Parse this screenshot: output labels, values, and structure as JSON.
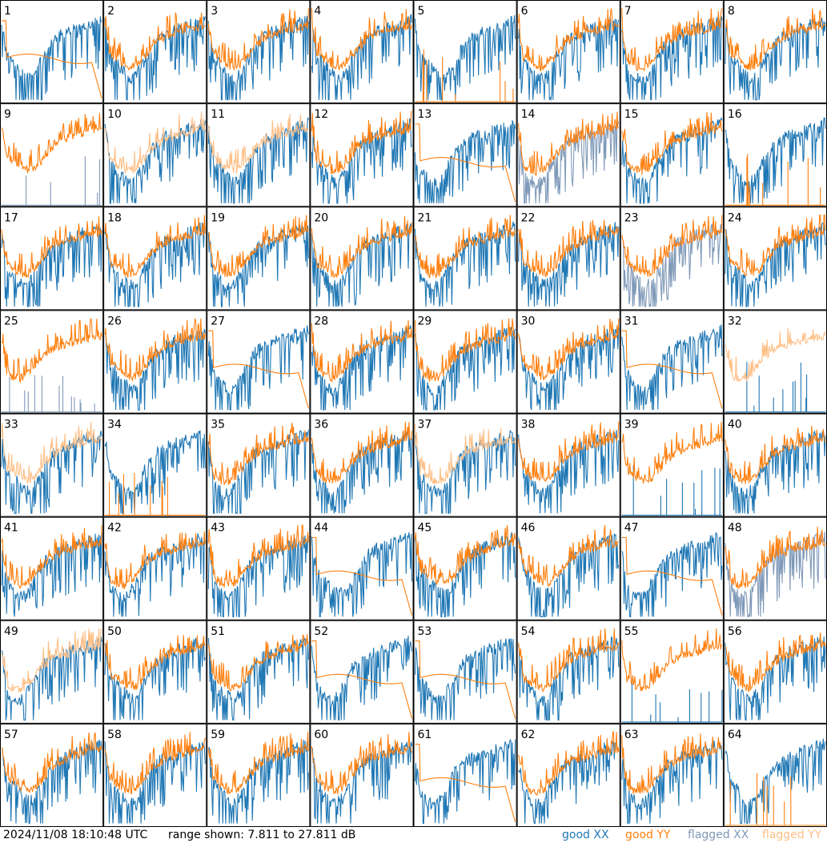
{
  "footer": {
    "timestamp": "2024/11/08 18:10:48 UTC",
    "range": "range shown: 7.811 to 27.811 dB"
  },
  "legend": [
    {
      "id": "good_xx",
      "label": "good XX",
      "color": "#1f77b4"
    },
    {
      "id": "good_yy",
      "label": "good YY",
      "color": "#ff7f0e"
    },
    {
      "id": "flagged_xx",
      "label": "flagged XX",
      "color": "#7f99b8"
    },
    {
      "id": "flagged_yy",
      "label": "flagged YY",
      "color": "#ffbf86"
    }
  ],
  "chart_data": {
    "type": "line",
    "title": "",
    "xlabel": "",
    "ylabel": "",
    "ylim": [
      7.811,
      27.811
    ],
    "grid_layout": [
      8,
      8
    ],
    "panel_labels": [
      "1",
      "2",
      "3",
      "4",
      "5",
      "6",
      "7",
      "8",
      "9",
      "10",
      "11",
      "12",
      "13",
      "14",
      "15",
      "16",
      "17",
      "18",
      "19",
      "20",
      "21",
      "22",
      "23",
      "24",
      "25",
      "26",
      "27",
      "28",
      "29",
      "30",
      "31",
      "32",
      "33",
      "34",
      "35",
      "36",
      "37",
      "38",
      "39",
      "40",
      "41",
      "42",
      "43",
      "44",
      "45",
      "46",
      "47",
      "48",
      "49",
      "50",
      "51",
      "52",
      "53",
      "54",
      "55",
      "56",
      "57",
      "58",
      "59",
      "60",
      "61",
      "62",
      "63",
      "64"
    ],
    "series": [
      {
        "name": "good XX"
      },
      {
        "name": "good YY"
      },
      {
        "name": "flagged XX"
      },
      {
        "name": "flagged YY"
      }
    ],
    "panel_status": {
      "xx_flagged": [
        9,
        14,
        23,
        25,
        48
      ],
      "yy_flagged": [
        10,
        11,
        32,
        33,
        37,
        49
      ],
      "xx_sparse": [
        9,
        25,
        32,
        39,
        55
      ],
      "yy_sparse": [
        5,
        16,
        34,
        64
      ],
      "yy_smooth": [
        1,
        13,
        27,
        31,
        44,
        47,
        52,
        53,
        61
      ]
    }
  }
}
